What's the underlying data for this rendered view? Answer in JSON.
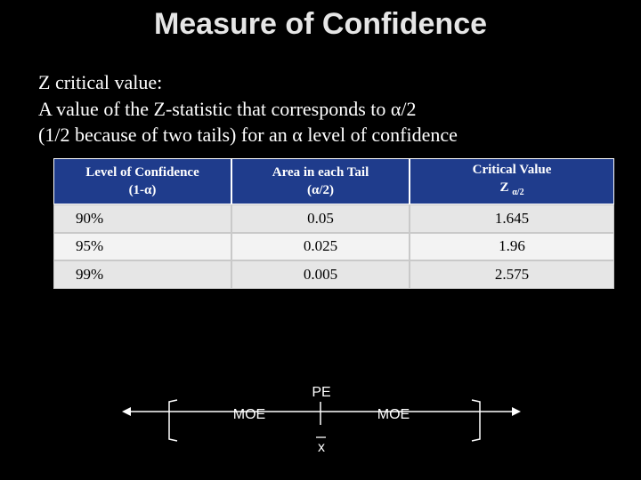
{
  "title": "Measure of Confidence",
  "body": [
    "Z critical value:",
    "A value of the Z-statistic that corresponds to α/2",
    "(1/2 because of two tails) for an α level of confidence"
  ],
  "table": {
    "header": [
      {
        "line1": "Level of Confidence",
        "line2": "(1-α)"
      },
      {
        "line1": "Area in each Tail",
        "line2": "(α/2)"
      },
      {
        "line1": "Critical Value",
        "line2": "Z",
        "sub": "α/2"
      }
    ],
    "rows": [
      [
        "90%",
        "0.05",
        "1.645"
      ],
      [
        "95%",
        "0.025",
        "1.96"
      ],
      [
        "99%",
        "0.005",
        "2.575"
      ]
    ]
  },
  "diagram": {
    "center": "PE",
    "left": "MOE",
    "right": "MOE",
    "mean": "x"
  }
}
